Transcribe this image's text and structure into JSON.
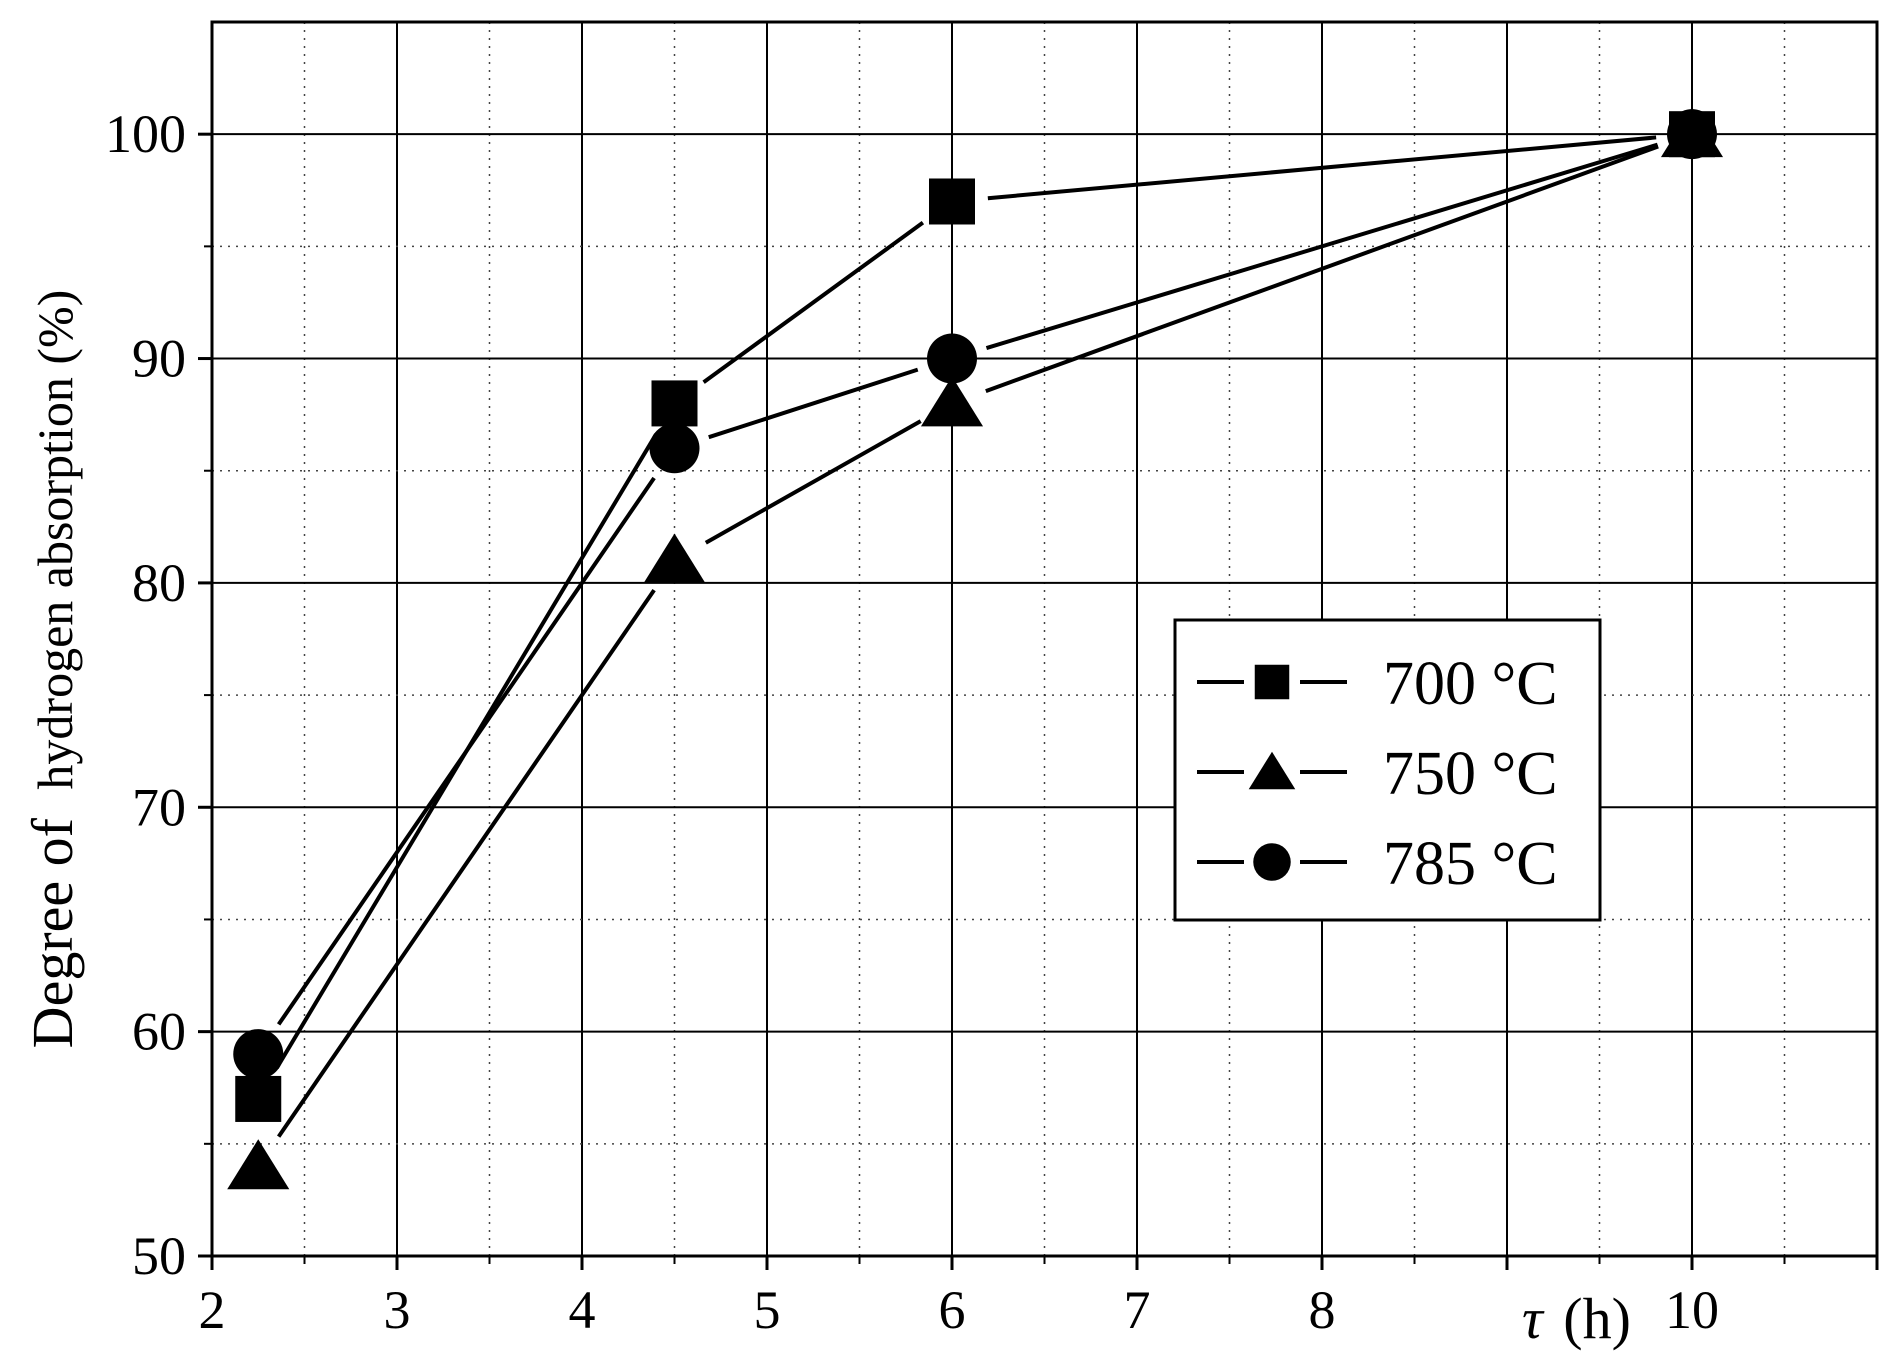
{
  "chart_data": {
    "type": "line",
    "title": "",
    "xlabel_symbol": "τ",
    "xlabel_unit": "(h)",
    "ylabel_prefix": "Degree of",
    "ylabel_main": "hydrogen absorption (%)",
    "xlim": [
      2,
      11
    ],
    "ylim": [
      50,
      105
    ],
    "x_ticks": [
      2,
      3,
      4,
      5,
      6,
      7,
      8,
      10
    ],
    "x_tick_labels": [
      "2",
      "3",
      "4",
      "5",
      "6",
      "7",
      "8",
      "10"
    ],
    "x_grid_major": [
      2,
      3,
      4,
      5,
      6,
      7,
      8,
      9,
      10
    ],
    "y_ticks": [
      50,
      60,
      70,
      80,
      90,
      100
    ],
    "y_tick_labels": [
      "50",
      "60",
      "70",
      "80",
      "90",
      "100"
    ],
    "grid": true,
    "legend_position": "right-middle",
    "series": [
      {
        "name": "700 °C",
        "marker": "square",
        "x": [
          2.25,
          4.5,
          6,
          10
        ],
        "y": [
          57,
          88,
          97,
          100
        ]
      },
      {
        "name": "750 °C",
        "marker": "triangle",
        "x": [
          2.25,
          4.5,
          6,
          10
        ],
        "y": [
          54,
          81,
          88,
          100
        ]
      },
      {
        "name": "785 °C",
        "marker": "circle",
        "x": [
          2.25,
          4.5,
          6,
          10
        ],
        "y": [
          59,
          86,
          90,
          100
        ]
      }
    ],
    "colors": {
      "line": "#000000",
      "grid": "#000000",
      "background": "#ffffff"
    }
  }
}
